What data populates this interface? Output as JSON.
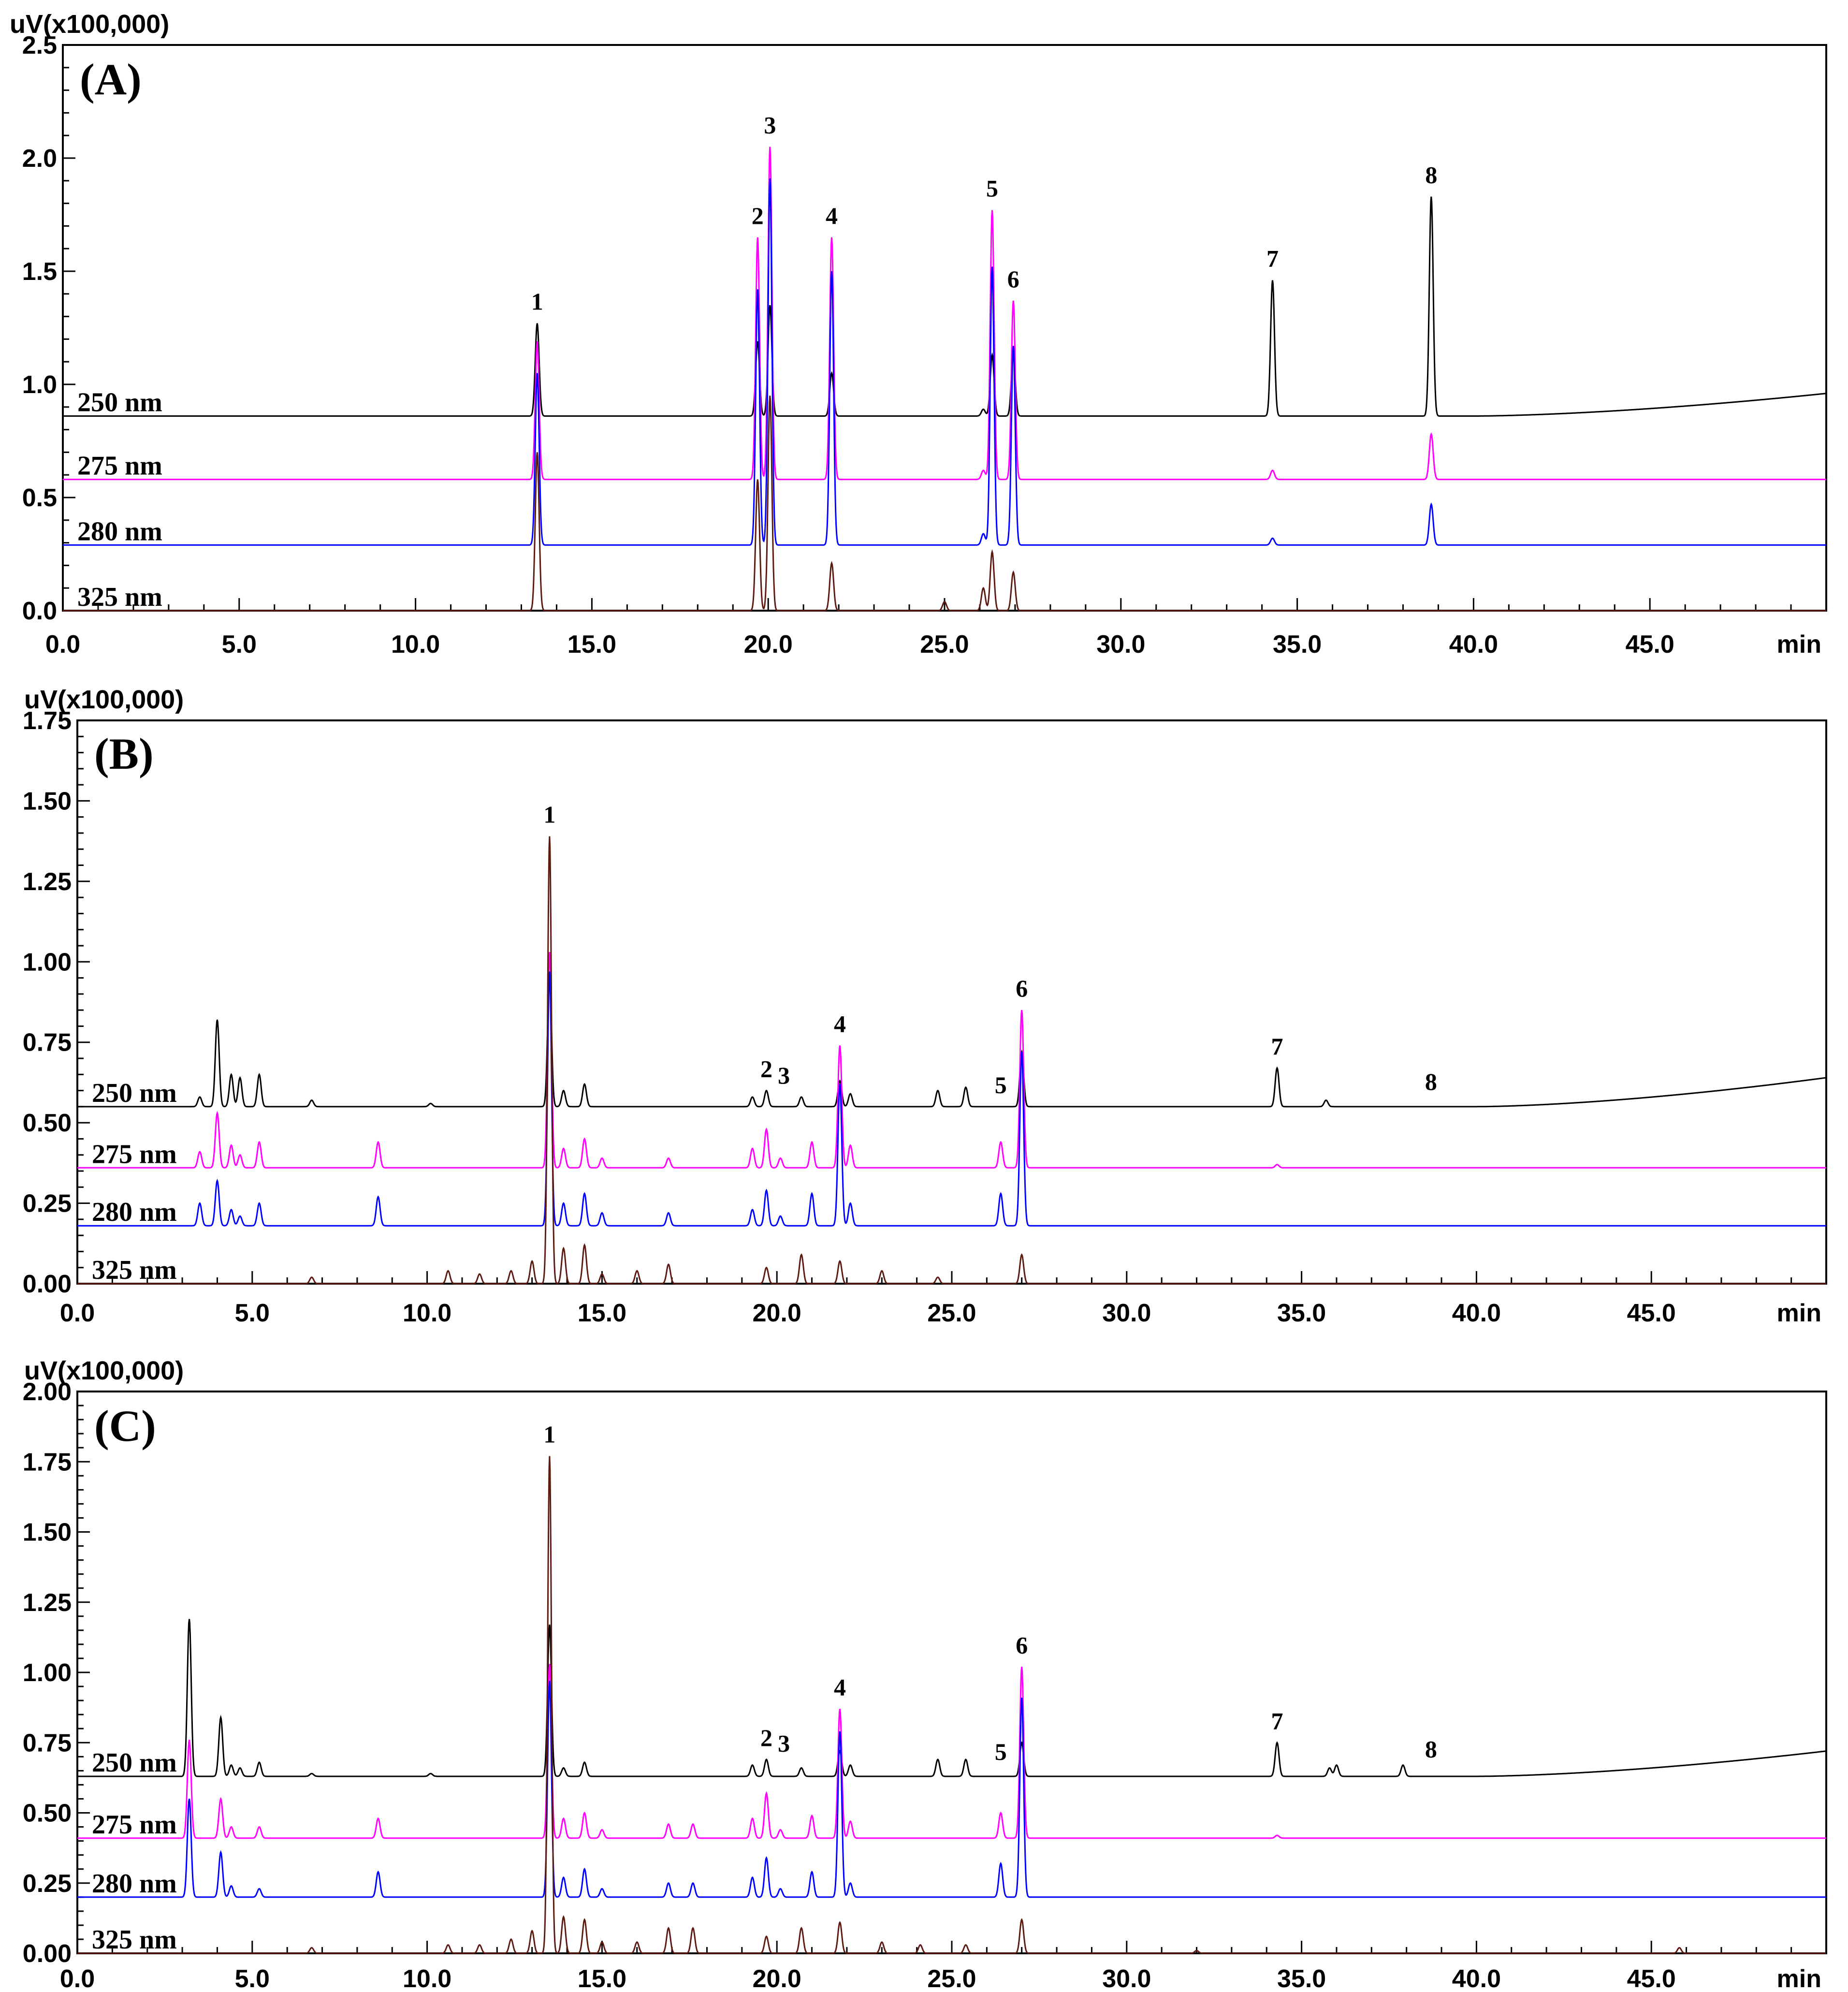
{
  "chart_data": [
    {
      "type": "line",
      "panel_label": "(A)",
      "ylabel": "uV(x100,000)",
      "xunit": "min",
      "xlim": [
        0,
        50
      ],
      "ylim": [
        0,
        2.5
      ],
      "x_ticks": [
        "0.0",
        "5.0",
        "10.0",
        "15.0",
        "20.0",
        "25.0",
        "30.0",
        "35.0",
        "40.0",
        "45.0"
      ],
      "y_ticks": [
        "0.0",
        "0.5",
        "1.0",
        "1.5",
        "2.0",
        "2.5"
      ],
      "series": [
        {
          "name": "250 nm",
          "color": "#000000",
          "baseline": 0.86,
          "drift": 0.1,
          "peaks": [
            [
              13.45,
              1.27
            ],
            [
              19.7,
              1.19
            ],
            [
              20.05,
              1.35
            ],
            [
              21.8,
              1.05
            ],
            [
              26.1,
              0.89
            ],
            [
              26.35,
              1.13
            ],
            [
              26.95,
              1.14
            ],
            [
              34.3,
              1.46
            ],
            [
              38.8,
              1.83
            ]
          ]
        },
        {
          "name": "275 nm",
          "color": "#ff00ff",
          "baseline": 0.58,
          "drift": 0,
          "peaks": [
            [
              13.45,
              1.19
            ],
            [
              19.7,
              1.65
            ],
            [
              20.05,
              2.05
            ],
            [
              21.8,
              1.65
            ],
            [
              26.1,
              0.62
            ],
            [
              26.35,
              1.77
            ],
            [
              26.95,
              1.37
            ],
            [
              34.3,
              0.62
            ],
            [
              38.8,
              0.78
            ]
          ]
        },
        {
          "name": "280 nm",
          "color": "#0000ff",
          "baseline": 0.29,
          "drift": 0,
          "peaks": [
            [
              13.45,
              1.05
            ],
            [
              19.7,
              1.42
            ],
            [
              20.05,
              1.91
            ],
            [
              21.8,
              1.5
            ],
            [
              26.1,
              0.34
            ],
            [
              26.35,
              1.52
            ],
            [
              26.95,
              1.17
            ],
            [
              34.3,
              0.32
            ],
            [
              38.8,
              0.47
            ]
          ]
        },
        {
          "name": "325 nm",
          "color": "#5c1a10",
          "baseline": 0.0,
          "drift": 0,
          "peaks": [
            [
              13.45,
              0.7
            ],
            [
              19.7,
              0.58
            ],
            [
              20.05,
              0.95
            ],
            [
              21.8,
              0.21
            ],
            [
              25.0,
              0.04
            ],
            [
              26.1,
              0.1
            ],
            [
              26.35,
              0.26
            ],
            [
              26.95,
              0.17
            ]
          ]
        }
      ],
      "peak_labels": [
        {
          "label": "1",
          "x": 13.45,
          "y": 1.27
        },
        {
          "label": "2",
          "x": 19.7,
          "y": 1.65
        },
        {
          "label": "3",
          "x": 20.05,
          "y": 2.05
        },
        {
          "label": "4",
          "x": 21.8,
          "y": 1.65
        },
        {
          "label": "5",
          "x": 26.35,
          "y": 1.77
        },
        {
          "label": "6",
          "x": 26.95,
          "y": 1.37
        },
        {
          "label": "7",
          "x": 34.3,
          "y": 1.46
        },
        {
          "label": "8",
          "x": 38.8,
          "y": 1.83
        }
      ]
    },
    {
      "type": "line",
      "panel_label": "(B)",
      "ylabel": "uV(x100,000)",
      "xunit": "min",
      "xlim": [
        0,
        50
      ],
      "ylim": [
        0,
        1.75
      ],
      "x_ticks": [
        "0.0",
        "5.0",
        "10.0",
        "15.0",
        "20.0",
        "25.0",
        "30.0",
        "35.0",
        "40.0",
        "45.0"
      ],
      "y_ticks": [
        "0.00",
        "0.25",
        "0.50",
        "0.75",
        "1.00",
        "1.25",
        "1.50",
        "1.75"
      ],
      "series": [
        {
          "name": "250 nm",
          "color": "#000000",
          "baseline": 0.55,
          "drift": 0.09,
          "peaks": [
            [
              3.5,
              0.58
            ],
            [
              4.0,
              0.82
            ],
            [
              4.4,
              0.65
            ],
            [
              4.65,
              0.64
            ],
            [
              5.2,
              0.65
            ],
            [
              6.7,
              0.57
            ],
            [
              10.1,
              0.56
            ],
            [
              13.5,
              0.96
            ],
            [
              13.9,
              0.6
            ],
            [
              14.5,
              0.62
            ],
            [
              19.3,
              0.58
            ],
            [
              19.7,
              0.6
            ],
            [
              20.7,
              0.58
            ],
            [
              21.8,
              0.63
            ],
            [
              22.1,
              0.59
            ],
            [
              24.6,
              0.6
            ],
            [
              25.4,
              0.61
            ],
            [
              27.0,
              0.72
            ],
            [
              34.3,
              0.67
            ],
            [
              35.7,
              0.57
            ]
          ]
        },
        {
          "name": "275 nm",
          "color": "#ff00ff",
          "baseline": 0.36,
          "drift": 0,
          "peaks": [
            [
              3.5,
              0.41
            ],
            [
              4.0,
              0.53
            ],
            [
              4.4,
              0.43
            ],
            [
              4.65,
              0.4
            ],
            [
              5.2,
              0.44
            ],
            [
              8.6,
              0.44
            ],
            [
              13.5,
              1.03
            ],
            [
              13.9,
              0.42
            ],
            [
              14.5,
              0.45
            ],
            [
              15.0,
              0.39
            ],
            [
              16.9,
              0.39
            ],
            [
              19.3,
              0.42
            ],
            [
              19.7,
              0.48
            ],
            [
              20.1,
              0.39
            ],
            [
              21.0,
              0.44
            ],
            [
              21.8,
              0.74
            ],
            [
              22.1,
              0.43
            ],
            [
              26.4,
              0.44
            ],
            [
              27.0,
              0.85
            ],
            [
              34.3,
              0.37
            ]
          ]
        },
        {
          "name": "280 nm",
          "color": "#0000ff",
          "baseline": 0.18,
          "drift": 0,
          "peaks": [
            [
              3.5,
              0.25
            ],
            [
              4.0,
              0.32
            ],
            [
              4.4,
              0.23
            ],
            [
              4.65,
              0.21
            ],
            [
              5.2,
              0.25
            ],
            [
              8.6,
              0.27
            ],
            [
              13.5,
              0.97
            ],
            [
              13.9,
              0.25
            ],
            [
              14.5,
              0.28
            ],
            [
              15.0,
              0.22
            ],
            [
              16.9,
              0.22
            ],
            [
              19.3,
              0.23
            ],
            [
              19.7,
              0.29
            ],
            [
              20.1,
              0.21
            ],
            [
              21.0,
              0.28
            ],
            [
              21.8,
              0.62
            ],
            [
              22.1,
              0.25
            ],
            [
              26.4,
              0.28
            ],
            [
              27.0,
              0.72
            ]
          ]
        },
        {
          "name": "325 nm",
          "color": "#5c1a10",
          "baseline": 0.0,
          "drift": 0,
          "peaks": [
            [
              6.7,
              0.02
            ],
            [
              10.6,
              0.04
            ],
            [
              11.5,
              0.03
            ],
            [
              12.4,
              0.04
            ],
            [
              13.0,
              0.07
            ],
            [
              13.5,
              1.39
            ],
            [
              13.9,
              0.11
            ],
            [
              14.5,
              0.12
            ],
            [
              15.0,
              0.03
            ],
            [
              16.0,
              0.04
            ],
            [
              16.9,
              0.06
            ],
            [
              19.7,
              0.05
            ],
            [
              20.7,
              0.09
            ],
            [
              21.8,
              0.07
            ],
            [
              23.0,
              0.04
            ],
            [
              24.6,
              0.02
            ],
            [
              27.0,
              0.09
            ]
          ]
        }
      ],
      "peak_labels": [
        {
          "label": "1",
          "x": 13.5,
          "y": 1.39
        },
        {
          "label": "2",
          "x": 19.7,
          "y": 0.6
        },
        {
          "label": "3",
          "x": 20.2,
          "y": 0.58
        },
        {
          "label": "4",
          "x": 21.8,
          "y": 0.74
        },
        {
          "label": "5",
          "x": 26.4,
          "y": 0.55
        },
        {
          "label": "6",
          "x": 27.0,
          "y": 0.85
        },
        {
          "label": "7",
          "x": 34.3,
          "y": 0.67
        },
        {
          "label": "8",
          "x": 38.7,
          "y": 0.56
        }
      ]
    },
    {
      "type": "line",
      "panel_label": "(C)",
      "ylabel": "uV(x100,000)",
      "xunit": "min",
      "xlim": [
        0,
        50
      ],
      "ylim": [
        0,
        2.0
      ],
      "x_ticks": [
        "0.0",
        "5.0",
        "10.0",
        "15.0",
        "20.0",
        "25.0",
        "30.0",
        "35.0",
        "40.0",
        "45.0"
      ],
      "y_ticks": [
        "0.00",
        "0.25",
        "0.50",
        "0.75",
        "1.00",
        "1.25",
        "1.50",
        "1.75",
        "2.00"
      ],
      "series": [
        {
          "name": "250 nm",
          "color": "#000000",
          "baseline": 0.63,
          "drift": 0.09,
          "peaks": [
            [
              3.2,
              1.19
            ],
            [
              4.1,
              0.84
            ],
            [
              4.4,
              0.67
            ],
            [
              4.65,
              0.66
            ],
            [
              5.2,
              0.68
            ],
            [
              6.7,
              0.64
            ],
            [
              10.1,
              0.64
            ],
            [
              13.5,
              1.17
            ],
            [
              13.9,
              0.66
            ],
            [
              14.5,
              0.68
            ],
            [
              19.3,
              0.67
            ],
            [
              19.7,
              0.69
            ],
            [
              20.7,
              0.66
            ],
            [
              21.8,
              0.72
            ],
            [
              22.1,
              0.67
            ],
            [
              24.6,
              0.69
            ],
            [
              25.4,
              0.69
            ],
            [
              27.0,
              0.75
            ],
            [
              34.3,
              0.75
            ],
            [
              35.8,
              0.66
            ],
            [
              36.0,
              0.67
            ],
            [
              37.9,
              0.67
            ]
          ]
        },
        {
          "name": "275 nm",
          "color": "#ff00ff",
          "baseline": 0.41,
          "drift": 0,
          "peaks": [
            [
              3.2,
              0.76
            ],
            [
              4.1,
              0.55
            ],
            [
              4.4,
              0.45
            ],
            [
              5.2,
              0.45
            ],
            [
              8.6,
              0.48
            ],
            [
              13.5,
              1.03
            ],
            [
              13.9,
              0.48
            ],
            [
              14.5,
              0.5
            ],
            [
              15.0,
              0.44
            ],
            [
              16.9,
              0.46
            ],
            [
              17.6,
              0.46
            ],
            [
              19.3,
              0.48
            ],
            [
              19.7,
              0.57
            ],
            [
              20.1,
              0.44
            ],
            [
              21.0,
              0.49
            ],
            [
              21.8,
              0.87
            ],
            [
              22.1,
              0.47
            ],
            [
              26.4,
              0.5
            ],
            [
              27.0,
              1.02
            ],
            [
              34.3,
              0.42
            ]
          ]
        },
        {
          "name": "280 nm",
          "color": "#0000ff",
          "baseline": 0.2,
          "drift": 0,
          "peaks": [
            [
              3.2,
              0.55
            ],
            [
              4.1,
              0.36
            ],
            [
              4.4,
              0.24
            ],
            [
              5.2,
              0.23
            ],
            [
              8.6,
              0.29
            ],
            [
              13.5,
              0.97
            ],
            [
              13.9,
              0.27
            ],
            [
              14.5,
              0.3
            ],
            [
              15.0,
              0.23
            ],
            [
              16.9,
              0.25
            ],
            [
              17.6,
              0.25
            ],
            [
              19.3,
              0.27
            ],
            [
              19.7,
              0.34
            ],
            [
              20.1,
              0.23
            ],
            [
              21.0,
              0.29
            ],
            [
              21.8,
              0.79
            ],
            [
              22.1,
              0.25
            ],
            [
              26.4,
              0.32
            ],
            [
              27.0,
              0.91
            ]
          ]
        },
        {
          "name": "325 nm",
          "color": "#5c1a10",
          "baseline": 0.0,
          "drift": 0,
          "peaks": [
            [
              6.7,
              0.02
            ],
            [
              10.6,
              0.03
            ],
            [
              11.5,
              0.03
            ],
            [
              12.4,
              0.05
            ],
            [
              13.0,
              0.08
            ],
            [
              13.5,
              1.77
            ],
            [
              13.9,
              0.13
            ],
            [
              14.5,
              0.12
            ],
            [
              15.0,
              0.04
            ],
            [
              16.0,
              0.04
            ],
            [
              16.9,
              0.09
            ],
            [
              17.6,
              0.09
            ],
            [
              19.7,
              0.06
            ],
            [
              20.7,
              0.09
            ],
            [
              21.8,
              0.11
            ],
            [
              23.0,
              0.04
            ],
            [
              24.1,
              0.03
            ],
            [
              25.4,
              0.03
            ],
            [
              27.0,
              0.12
            ],
            [
              32.0,
              0.01
            ],
            [
              45.8,
              0.02
            ]
          ]
        }
      ],
      "peak_labels": [
        {
          "label": "1",
          "x": 13.5,
          "y": 1.77
        },
        {
          "label": "2",
          "x": 19.7,
          "y": 0.69
        },
        {
          "label": "3",
          "x": 20.2,
          "y": 0.67
        },
        {
          "label": "4",
          "x": 21.8,
          "y": 0.87
        },
        {
          "label": "5",
          "x": 26.4,
          "y": 0.64
        },
        {
          "label": "6",
          "x": 27.0,
          "y": 1.02
        },
        {
          "label": "7",
          "x": 34.3,
          "y": 0.75
        },
        {
          "label": "8",
          "x": 38.7,
          "y": 0.65
        }
      ]
    }
  ]
}
